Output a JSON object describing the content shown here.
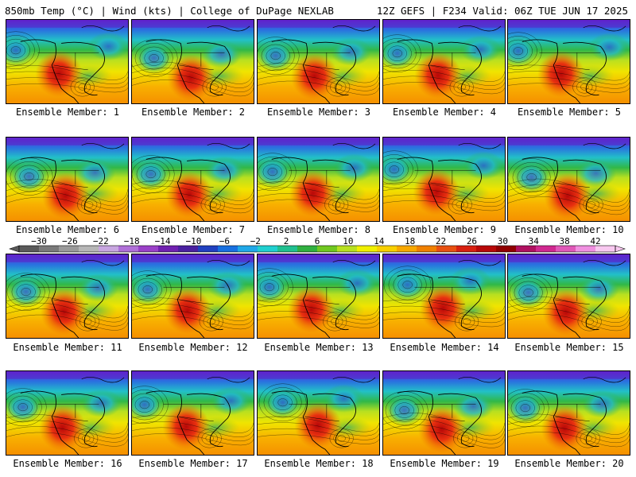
{
  "header": {
    "left": "850mb Temp (°C) | Wind (kts) | College of DuPage NEXLAB",
    "right": "12Z GEFS | F234 Valid: 06Z TUE JUN 17 2025"
  },
  "members": [
    "Ensemble Member: 1",
    "Ensemble Member: 2",
    "Ensemble Member: 3",
    "Ensemble Member: 4",
    "Ensemble Member: 5",
    "Ensemble Member: 6",
    "Ensemble Member: 7",
    "Ensemble Member: 8",
    "Ensemble Member: 9",
    "Ensemble Member: 10",
    "Ensemble Member: 11",
    "Ensemble Member: 12",
    "Ensemble Member: 13",
    "Ensemble Member: 14",
    "Ensemble Member: 15",
    "Ensemble Member: 16",
    "Ensemble Member: 17",
    "Ensemble Member: 18",
    "Ensemble Member: 19",
    "Ensemble Member: 20"
  ],
  "colorbar": {
    "labels": [
      "−30",
      "−26",
      "−22",
      "−18",
      "−14",
      "−10",
      "−6",
      "−2",
      "2",
      "6",
      "10",
      "14",
      "18",
      "22",
      "26",
      "30",
      "34",
      "38",
      "42"
    ],
    "colors": [
      "#5a5a5a",
      "#7a7a7a",
      "#9a9a9a",
      "#b6b6b6",
      "#c8a6e0",
      "#b070d8",
      "#9a40c8",
      "#7020b0",
      "#4a20a0",
      "#2040c0",
      "#1870e0",
      "#20a8e8",
      "#20d0d0",
      "#20c090",
      "#30b040",
      "#70c820",
      "#b8e020",
      "#f0f000",
      "#f8d000",
      "#f8a800",
      "#f08000",
      "#e85010",
      "#d82010",
      "#b80808",
      "#900000",
      "#b01060",
      "#d02890",
      "#e058b8",
      "#f090e0",
      "#f8c8f0"
    ]
  }
}
